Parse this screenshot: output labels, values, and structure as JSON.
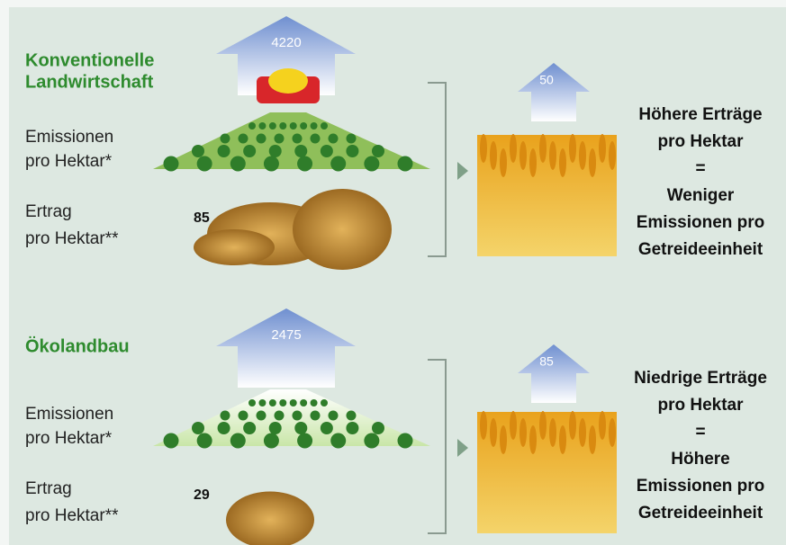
{
  "sections": [
    {
      "title_lines": [
        "Konventionelle",
        "Landwirtschaft"
      ],
      "emissions_label": [
        "Emissionen",
        "pro Hektar*"
      ],
      "emissions_value": 4220,
      "yield_label": [
        "Ertrag",
        "pro Hektar**"
      ],
      "yield_value": 85,
      "per_unit_value": 50,
      "conclusion": [
        "Höhere Erträge",
        "pro Hektar",
        "=",
        "Weniger",
        "Emissionen pro",
        "Getreideeinheit"
      ]
    },
    {
      "title_lines": [
        "Ökolandbau"
      ],
      "emissions_label": [
        "Emissionen",
        "pro Hektar*"
      ],
      "emissions_value": 2475,
      "yield_label": [
        "Ertrag",
        "pro Hektar**"
      ],
      "yield_value": 29,
      "per_unit_value": 85,
      "conclusion": [
        "Niedrige Erträge",
        "pro Hektar",
        "=",
        "Höhere",
        "Emissionen pro",
        "Getreideeinheit"
      ]
    }
  ]
}
